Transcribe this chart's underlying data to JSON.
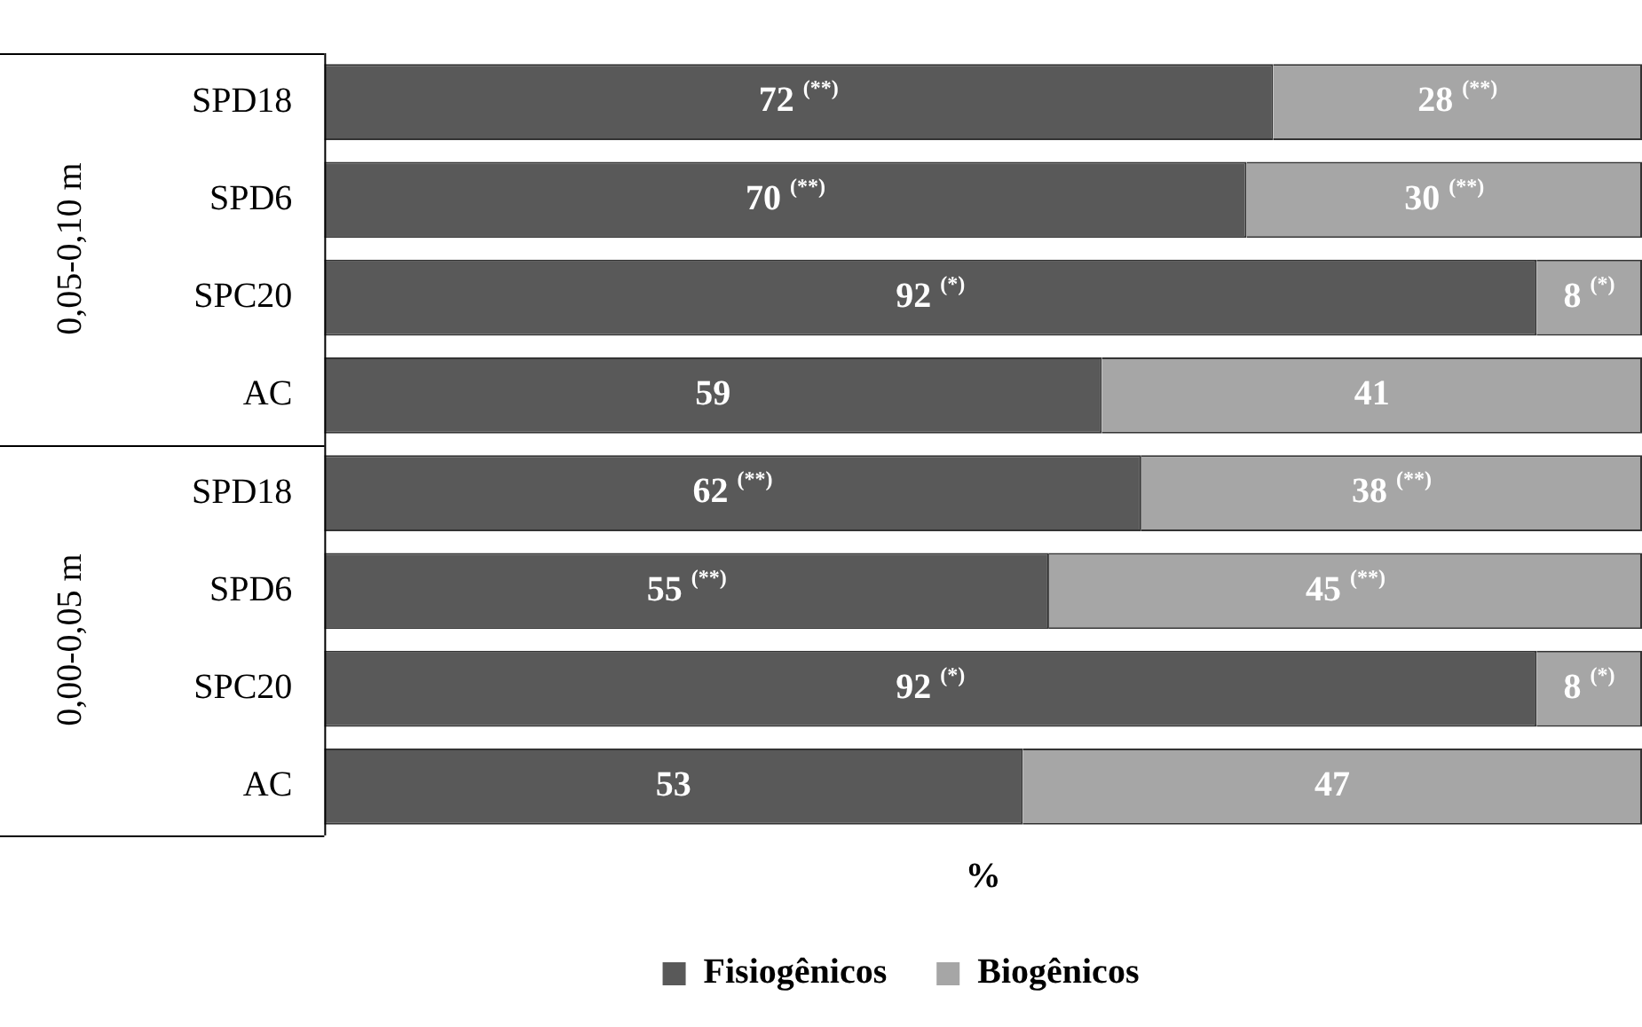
{
  "chart_data": {
    "type": "bar",
    "orientation": "horizontal",
    "stacked": true,
    "categories": [
      "SPD18",
      "SPD6",
      "SPC20",
      "AC",
      "SPD18",
      "SPD6",
      "SPC20",
      "AC"
    ],
    "series": [
      {
        "name": "Fisiogênicos",
        "color": "#595959",
        "values": [
          72,
          70,
          92,
          59,
          62,
          55,
          92,
          53
        ],
        "value_labels": [
          "72 $^{(**)}$",
          "70 $^{(**)}$",
          "92 $^{(*)}$",
          "59",
          "62 $^{(**)}$",
          "55 $^{(**)}$",
          "92 $^{(*)}$",
          "53"
        ]
      },
      {
        "name": "Biogênicos",
        "color": "#a6a6a6",
        "values": [
          28,
          30,
          8,
          41,
          38,
          45,
          8,
          47
        ],
        "value_labels": [
          "28 $^{(**)}$",
          "30 $^{(**)}$",
          "8 $^{(*)}$",
          "41",
          "38 $^{(**)}$",
          "45 $^{(**)}$",
          "8 $^{(*)}$",
          "47"
        ]
      }
    ],
    "xlim": [
      0,
      100
    ],
    "xlabel": "%",
    "tick_labels": "y",
    "grid": false,
    "legend": "bottom",
    "annotations": [
      "0,05-0,10 m",
      "0,00-0,05 m"
    ]
  }
}
